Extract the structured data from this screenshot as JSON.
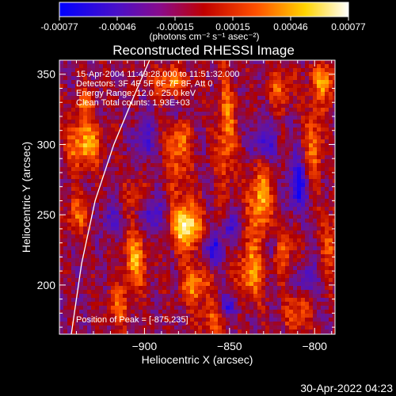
{
  "title": "Reconstructed RHESSI Image",
  "colorbar": {
    "ticks": [
      "-0.00077",
      "-0.00046",
      "-0.00015",
      "0.00015",
      "0.00046",
      "0.00077"
    ],
    "units_label": "(photons cm⁻² s⁻¹ asec⁻²)"
  },
  "annotations": {
    "time_range": "15-Apr-2004 11:49:28.000 to 11:51:32.000",
    "detectors": "Detectors: 3F 4F 5F 6F 7F 8F, Att 0",
    "energy_range": "Energy Range: 12.0 - 25.0 keV",
    "clean": "Clean     Total counts: 1.93E+03",
    "peak": "Position of Peak = [-875,235]"
  },
  "footer_timestamp": "30-Apr-2022 04:23",
  "colors": {
    "background": "#000000",
    "text": "#ffffff"
  },
  "chart_data": {
    "type": "heatmap",
    "title": "Reconstructed RHESSI Image",
    "xlabel": "Heliocentric X (arcsec)",
    "ylabel": "Heliocentric Y (arcsec)",
    "xlim": [
      -950,
      -788
    ],
    "ylim": [
      165,
      360
    ],
    "x_ticks": [
      -900,
      -850,
      -800
    ],
    "x_tick_labels": [
      "−900",
      "−850",
      "−800"
    ],
    "y_ticks": [
      200,
      250,
      300,
      350
    ],
    "y_tick_labels": [
      "200",
      "250",
      "300",
      "350"
    ],
    "colorscale": [
      "#0000ff",
      "#6a0dad",
      "#c00000",
      "#ff6000",
      "#ffd400",
      "#ffffff"
    ],
    "value_range": [
      -0.00077,
      0.00077
    ],
    "peak": [
      -875,
      235
    ],
    "limb": [
      [
        -943,
        165
      ],
      [
        -937,
        215
      ],
      [
        -929,
        260
      ],
      [
        -918,
        300
      ],
      [
        -906,
        335
      ],
      [
        -897,
        360
      ]
    ],
    "blobs": [
      {
        "x": -875,
        "y": 242,
        "v": 1.0,
        "sx": 6,
        "sy": 12
      },
      {
        "x": -905,
        "y": 218,
        "v": 0.65,
        "sx": 5,
        "sy": 14
      },
      {
        "x": -870,
        "y": 200,
        "v": 0.6,
        "sx": 6,
        "sy": 10
      },
      {
        "x": -832,
        "y": 260,
        "v": 0.7,
        "sx": 5,
        "sy": 22
      },
      {
        "x": -838,
        "y": 208,
        "v": 0.6,
        "sx": 6,
        "sy": 14
      },
      {
        "x": -818,
        "y": 225,
        "v": 0.5,
        "sx": 4,
        "sy": 12
      },
      {
        "x": -935,
        "y": 300,
        "v": 0.75,
        "sx": 7,
        "sy": 12
      },
      {
        "x": -940,
        "y": 250,
        "v": 0.45,
        "sx": 5,
        "sy": 10
      },
      {
        "x": -880,
        "y": 300,
        "v": 0.55,
        "sx": 5,
        "sy": 22
      },
      {
        "x": -885,
        "y": 345,
        "v": 0.5,
        "sx": 8,
        "sy": 8
      },
      {
        "x": -852,
        "y": 310,
        "v": 0.55,
        "sx": 4,
        "sy": 30
      },
      {
        "x": -800,
        "y": 300,
        "v": 0.5,
        "sx": 4,
        "sy": 20
      },
      {
        "x": -795,
        "y": 345,
        "v": 0.55,
        "sx": 6,
        "sy": 10
      },
      {
        "x": -820,
        "y": 340,
        "v": 0.45,
        "sx": 5,
        "sy": 10
      },
      {
        "x": -790,
        "y": 230,
        "v": 0.45,
        "sx": 4,
        "sy": 16
      },
      {
        "x": -810,
        "y": 180,
        "v": 0.5,
        "sx": 5,
        "sy": 10
      },
      {
        "x": -860,
        "y": 175,
        "v": 0.4,
        "sx": 6,
        "sy": 8
      },
      {
        "x": -915,
        "y": 185,
        "v": 0.45,
        "sx": 5,
        "sy": 10
      },
      {
        "x": -935,
        "y": 330,
        "v": 0.45,
        "sx": 4,
        "sy": 8
      },
      {
        "x": -905,
        "y": 265,
        "v": 0.3,
        "sx": 5,
        "sy": 8
      },
      {
        "x": -860,
        "y": 225,
        "v": -0.55,
        "sx": 4,
        "sy": 8
      },
      {
        "x": -895,
        "y": 250,
        "v": -0.5,
        "sx": 4,
        "sy": 10
      },
      {
        "x": -810,
        "y": 270,
        "v": -0.6,
        "sx": 4,
        "sy": 14
      },
      {
        "x": -850,
        "y": 240,
        "v": -0.45,
        "sx": 3,
        "sy": 8
      },
      {
        "x": -830,
        "y": 300,
        "v": -0.55,
        "sx": 5,
        "sy": 10
      },
      {
        "x": -880,
        "y": 325,
        "v": -0.45,
        "sx": 4,
        "sy": 8
      },
      {
        "x": -850,
        "y": 185,
        "v": -0.5,
        "sx": 4,
        "sy": 6
      },
      {
        "x": -805,
        "y": 205,
        "v": -0.45,
        "sx": 4,
        "sy": 8
      },
      {
        "x": -920,
        "y": 245,
        "v": -0.4,
        "sx": 4,
        "sy": 8
      },
      {
        "x": -900,
        "y": 305,
        "v": -0.45,
        "sx": 4,
        "sy": 10
      },
      {
        "x": -825,
        "y": 230,
        "v": -0.4,
        "sx": 3,
        "sy": 8
      }
    ]
  }
}
